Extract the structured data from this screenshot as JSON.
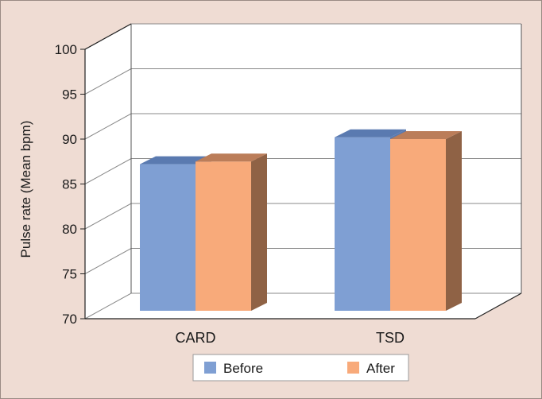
{
  "chart_data": {
    "type": "bar",
    "title": "",
    "xlabel": "",
    "ylabel": "Pulse rate (Mean bpm)",
    "ylim": [
      70,
      100
    ],
    "yticks": [
      70,
      75,
      80,
      85,
      90,
      95,
      100
    ],
    "y_tick_labels": [
      "70",
      "75",
      "80",
      "85",
      "90",
      "95",
      "100"
    ],
    "categories": [
      "CARD",
      "TSD"
    ],
    "series": [
      {
        "name": "Before",
        "values": [
          87.2,
          90.2
        ]
      },
      {
        "name": "After",
        "values": [
          87.5,
          90.0
        ]
      }
    ],
    "grid": true,
    "legend_position": "bottom",
    "style": "3d",
    "colors": {
      "background": "#efdcd3",
      "plot_background": "#ffffff",
      "before_front": "#7f9fd3",
      "before_top": "#5a7ab0",
      "after_front": "#f8aa7a",
      "after_top": "#bb7d59",
      "after_side": "#8f6245",
      "gridline": "#888888"
    }
  }
}
